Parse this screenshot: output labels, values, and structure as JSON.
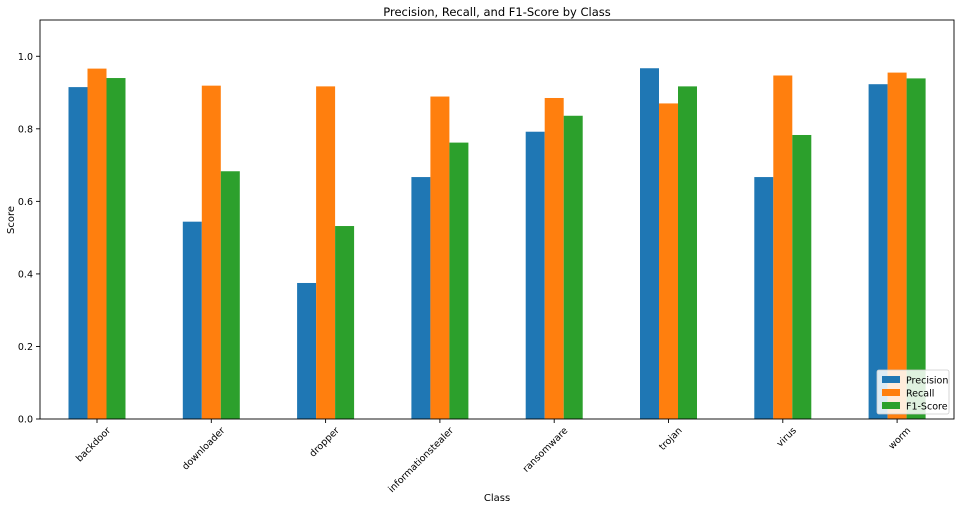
{
  "chart_data": {
    "type": "bar",
    "title": "Precision, Recall, and F1-Score by Class",
    "xlabel": "Class",
    "ylabel": "Score",
    "ylim": [
      0,
      1.1
    ],
    "yticks": [
      "0.0",
      "0.2",
      "0.4",
      "0.6",
      "0.8",
      "1.0"
    ],
    "ytick_values": [
      0,
      0.2,
      0.4,
      0.6,
      0.8,
      1.0
    ],
    "grid": false,
    "legend_position": "bottom-right",
    "categories": [
      "backdoor",
      "downloader",
      "dropper",
      "informationstealer",
      "ransomware",
      "trojan",
      "virus",
      "worm"
    ],
    "series": [
      {
        "name": "Precision",
        "color": "#1f77b4",
        "values": [
          0.915,
          0.544,
          0.375,
          0.667,
          0.792,
          0.967,
          0.667,
          0.923
        ]
      },
      {
        "name": "Recall",
        "color": "#ff7f0e",
        "values": [
          0.966,
          0.919,
          0.917,
          0.889,
          0.885,
          0.87,
          0.947,
          0.955
        ]
      },
      {
        "name": "F1-Score",
        "color": "#2ca02c",
        "values": [
          0.94,
          0.683,
          0.532,
          0.762,
          0.836,
          0.917,
          0.783,
          0.939
        ]
      }
    ]
  }
}
